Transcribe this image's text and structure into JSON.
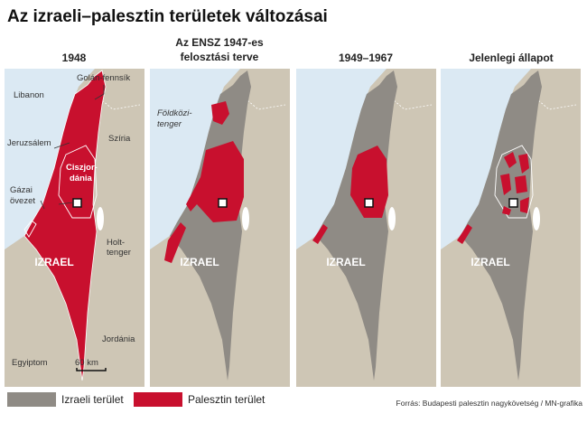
{
  "title": "Az izraeli–palesztin területek változásai",
  "panels": [
    {
      "title_lines": [
        "1948"
      ],
      "labels": [
        [
          "Golán-fennsík"
        ],
        [
          "Libanon"
        ],
        [
          "Szíria"
        ],
        [
          "Jeruzsálem"
        ],
        [
          "Gázai",
          "övezet"
        ],
        [
          "Ciszjor-",
          "dánia"
        ],
        [
          "Holt-",
          "tenger"
        ],
        [
          "IZRAEL"
        ],
        [
          "Jordánia"
        ],
        [
          "Egyiptom"
        ],
        [
          "60 km"
        ]
      ]
    },
    {
      "title_lines": [
        "Az ENSZ 1947-es",
        "felosztási terve"
      ],
      "labels": [
        [
          "Földközi-",
          "tenger"
        ],
        [
          "IZRAEL"
        ]
      ]
    },
    {
      "title_lines": [
        "1949–1967"
      ],
      "labels": [
        [
          "IZRAEL"
        ]
      ]
    },
    {
      "title_lines": [
        "Jelenlegi állapot"
      ],
      "labels": [
        [
          "IZRAEL"
        ]
      ]
    }
  ],
  "legend": [
    {
      "label": "Izraeli terület",
      "color": "#8f8b85"
    },
    {
      "label": "Palesztin terület",
      "color": "#c8102e"
    }
  ],
  "source": "Forrás: Budapesti palesztin nagykövetség / MN-grafika"
}
